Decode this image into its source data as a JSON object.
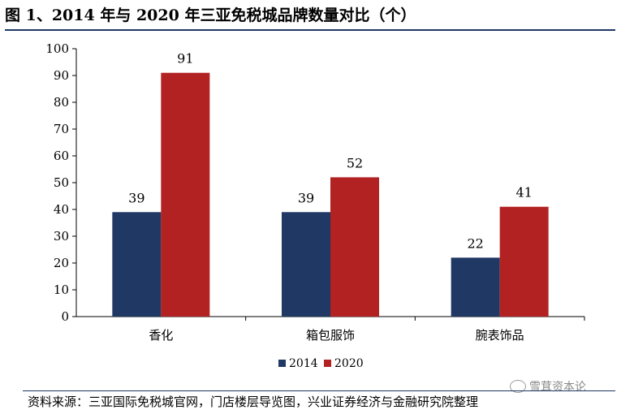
{
  "title": "图 1、2014 年与 2020 年三亚免税城品牌数量对比（个）",
  "source": "资料来源：三亚国际免税城官网，门店楼层导览图，兴业证券经济与金融研究院整理",
  "watermark": "雪茸资本论",
  "chart_data": {
    "type": "bar",
    "title": "2014 年与 2020 年三亚免税城品牌数量对比（个）",
    "xlabel": "",
    "ylabel": "",
    "ylim": [
      0,
      100
    ],
    "yticks": [
      "0",
      "10",
      "20",
      "30",
      "40",
      "50",
      "60",
      "70",
      "80",
      "90",
      "100"
    ],
    "categories": [
      "香化",
      "箱包服饰",
      "腕表饰品"
    ],
    "series": [
      {
        "name": "2014",
        "values": [
          39,
          39,
          22
        ],
        "color": "#1f3864"
      },
      {
        "name": "2020",
        "values": [
          91,
          52,
          41
        ],
        "color": "#b22222"
      }
    ],
    "legend_position": "bottom-center",
    "grid": false
  }
}
